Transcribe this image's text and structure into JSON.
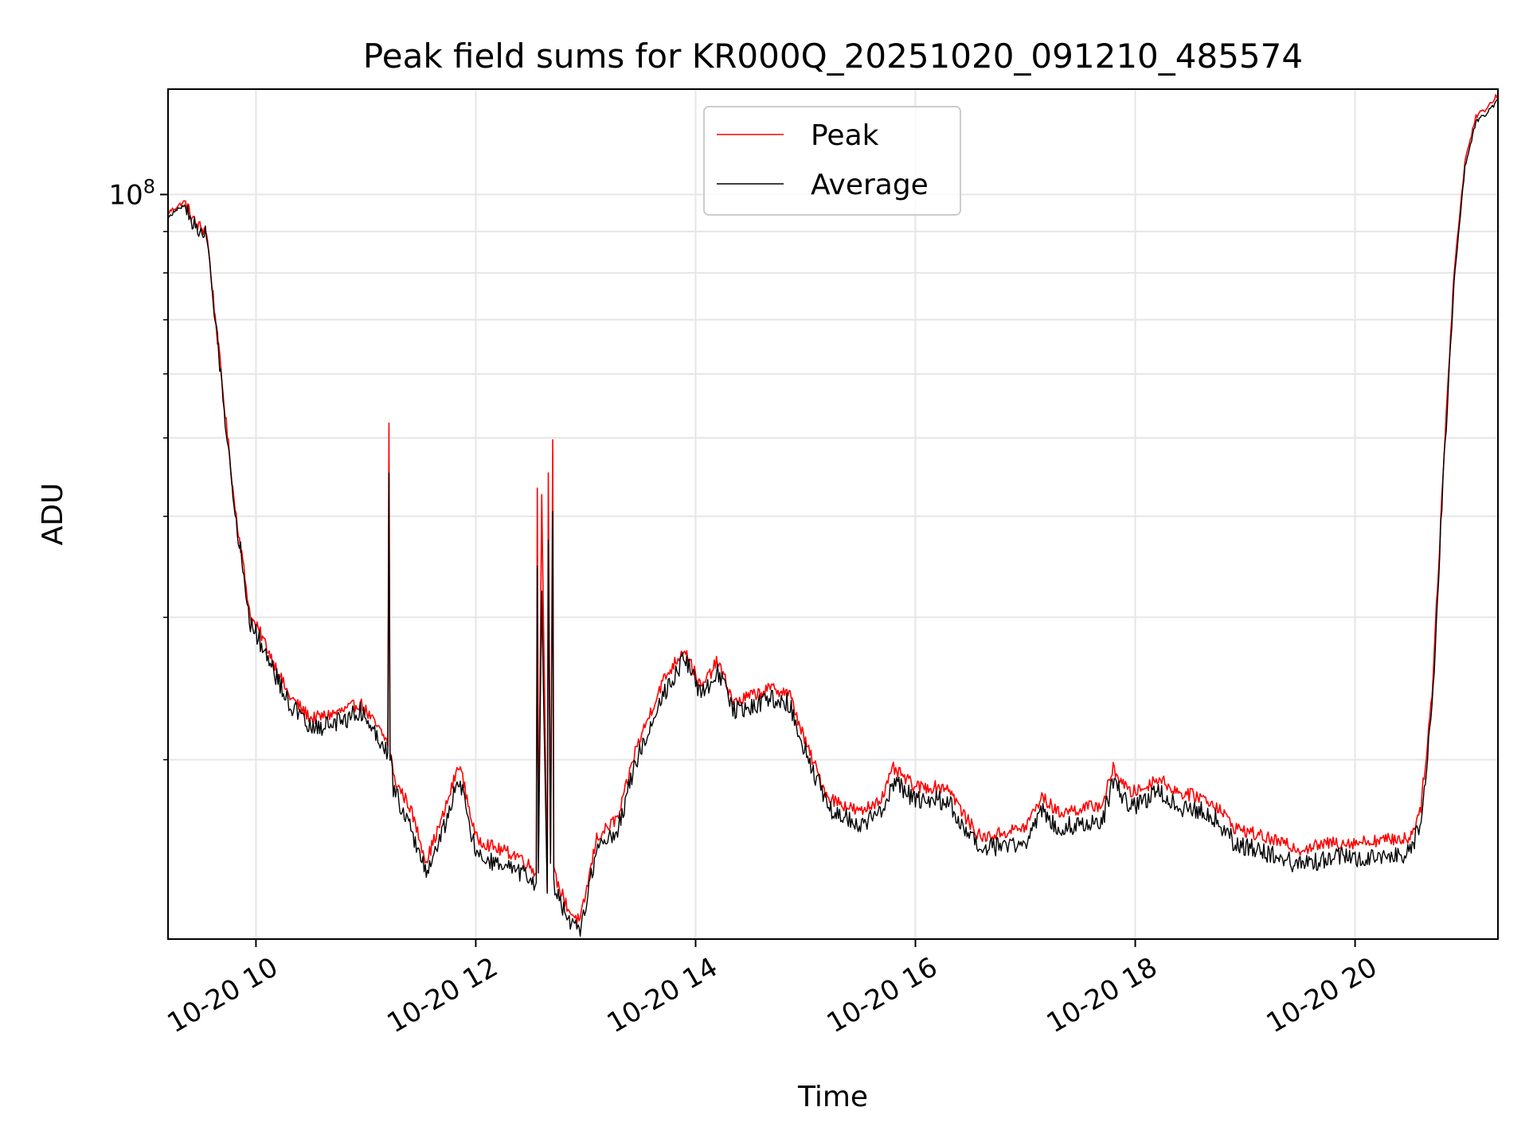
{
  "chart_data": {
    "type": "line",
    "title": "Peak field sums for KR000Q_20251020_091210_485574",
    "xlabel": "Time",
    "ylabel": "ADU",
    "yscale": "log",
    "xlim_hours": [
      9.2,
      21.3
    ],
    "ylim": [
      12000000,
      135000000
    ],
    "x_ticks": [
      {
        "value": 10,
        "label": "10-20 10"
      },
      {
        "value": 12,
        "label": "10-20 12"
      },
      {
        "value": 14,
        "label": "10-20 14"
      },
      {
        "value": 16,
        "label": "10-20 16"
      },
      {
        "value": 18,
        "label": "10-20 18"
      },
      {
        "value": 20,
        "label": "10-20 20"
      }
    ],
    "y_major_ticks": [
      {
        "value": 100000000,
        "base": "10",
        "exp": "8"
      }
    ],
    "y_minor_ticks": [
      20000000,
      30000000,
      40000000,
      50000000,
      60000000,
      70000000,
      80000000,
      90000000
    ],
    "grid": true,
    "legend_position": "top-center",
    "x_hours": [
      9.2,
      9.35,
      9.45,
      9.55,
      9.8,
      9.95,
      10.05,
      10.3,
      10.5,
      10.6,
      10.8,
      10.95,
      11.2,
      11.21,
      11.22,
      11.23,
      11.25,
      11.4,
      11.55,
      11.7,
      11.85,
      12.0,
      12.2,
      12.4,
      12.55,
      12.56,
      12.57,
      12.6,
      12.65,
      12.66,
      12.68,
      12.7,
      12.71,
      12.75,
      12.85,
      12.95,
      13.1,
      13.3,
      13.45,
      13.7,
      13.9,
      14.05,
      14.2,
      14.35,
      14.5,
      14.7,
      14.85,
      15.0,
      15.2,
      15.5,
      15.7,
      15.8,
      16.0,
      16.3,
      16.45,
      16.6,
      17.0,
      17.15,
      17.3,
      17.7,
      17.8,
      17.95,
      18.1,
      18.2,
      18.4,
      18.6,
      18.75,
      18.9,
      19.2,
      19.5,
      19.8,
      20.0,
      20.2,
      20.5,
      20.6,
      20.7,
      20.8,
      20.9,
      21.0,
      21.1,
      21.2,
      21.3
    ],
    "series": [
      {
        "name": "Peak",
        "color": "#ff0000",
        "values": [
          95000000,
          98000000,
          92000000,
          90000000,
          42000000,
          30000000,
          28500000,
          24000000,
          22500000,
          22600000,
          23000000,
          23500000,
          21000000,
          52000000,
          20000000,
          20500000,
          19000000,
          17500000,
          15000000,
          17000000,
          19800000,
          16000000,
          15500000,
          15200000,
          14500000,
          44000000,
          15000000,
          43000000,
          14000000,
          46000000,
          15000000,
          49000000,
          14500000,
          14000000,
          13000000,
          12600000,
          16000000,
          17000000,
          20500000,
          25000000,
          27500000,
          24500000,
          26500000,
          23500000,
          24000000,
          24500000,
          24200000,
          21000000,
          18000000,
          17200000,
          18000000,
          19500000,
          18500000,
          18500000,
          17000000,
          16000000,
          16500000,
          18000000,
          17200000,
          17600000,
          19500000,
          18200000,
          18500000,
          19000000,
          18200000,
          18000000,
          17500000,
          16500000,
          16000000,
          15500000,
          15800000,
          15800000,
          15900000,
          16000000,
          17500000,
          24000000,
          45000000,
          80000000,
          110000000,
          125000000,
          128000000,
          133000000
        ]
      },
      {
        "name": "Average",
        "color": "#000000",
        "values": [
          94000000,
          97000000,
          91000000,
          89000000,
          41500000,
          29500000,
          27800000,
          23500000,
          21800000,
          22000000,
          22400000,
          23000000,
          20500000,
          45000000,
          19500000,
          19800000,
          18500000,
          16500000,
          14500000,
          16300000,
          19000000,
          15300000,
          14800000,
          14500000,
          14000000,
          34000000,
          14500000,
          33000000,
          13500000,
          38000000,
          14500000,
          40000000,
          14000000,
          13500000,
          12500000,
          12300000,
          15500000,
          16500000,
          19800000,
          24000000,
          26800000,
          24000000,
          25800000,
          23000000,
          23300000,
          23800000,
          23500000,
          20500000,
          17500000,
          16500000,
          17300000,
          18800000,
          17800000,
          17800000,
          16200000,
          15500000,
          15800000,
          17300000,
          16500000,
          16800000,
          18800000,
          17500000,
          17800000,
          18300000,
          17500000,
          17300000,
          16800000,
          15800000,
          15300000,
          14800000,
          15200000,
          15100000,
          15200000,
          15300000,
          16800000,
          23000000,
          44000000,
          78000000,
          108000000,
          123000000,
          126000000,
          131000000
        ]
      }
    ]
  }
}
